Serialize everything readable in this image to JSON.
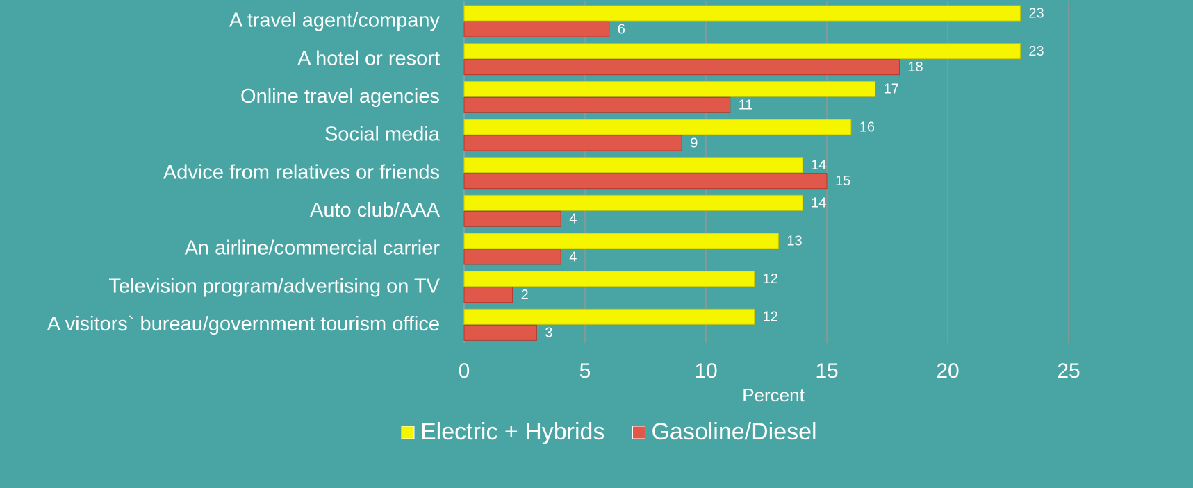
{
  "chart_data": {
    "type": "bar",
    "orientation": "horizontal",
    "categories": [
      "A travel agent/company",
      "A hotel or resort",
      "Online travel agencies",
      "Social media",
      "Advice from relatives or friends",
      "Auto club/AAA",
      "An airline/commercial carrier",
      "Television program/advertising on TV",
      "A visitors` bureau/government tourism office"
    ],
    "series": [
      {
        "name": "Electric + Hybrids",
        "color": "#f5f500",
        "values": [
          23,
          23,
          17,
          16,
          14,
          14,
          13,
          12,
          12
        ]
      },
      {
        "name": "Gasoline/Diesel",
        "color": "#e0584a",
        "values": [
          6,
          18,
          11,
          9,
          15,
          4,
          4,
          2,
          3
        ]
      }
    ],
    "xlabel": "Percent",
    "xlim": [
      0,
      25
    ],
    "xticks": [
      0,
      5,
      10,
      15,
      20,
      25
    ],
    "grid": true,
    "legend": "bottom"
  }
}
